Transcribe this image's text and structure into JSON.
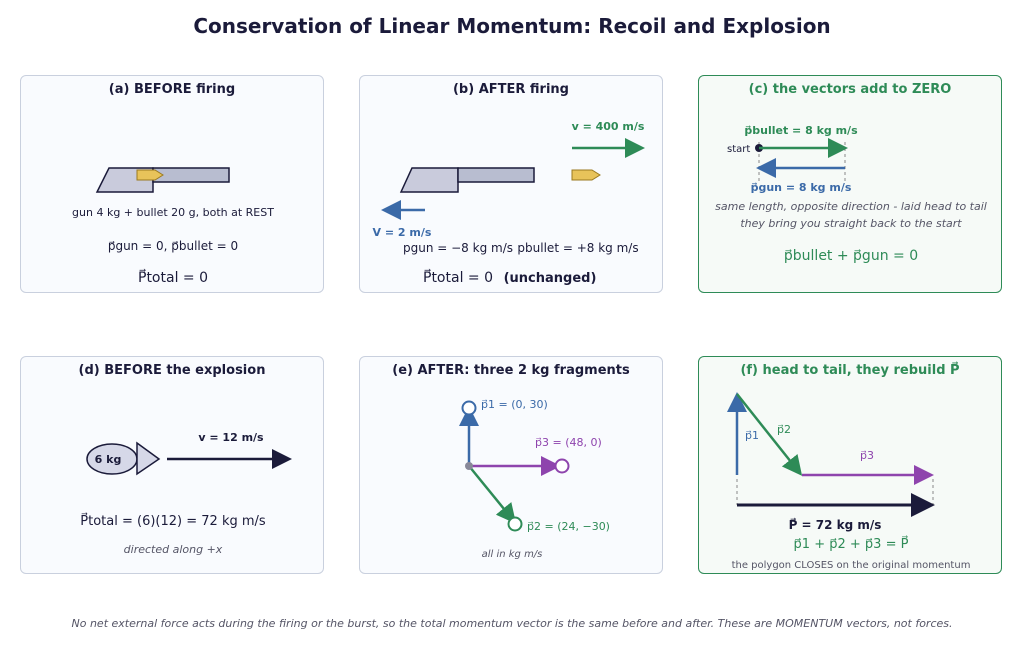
{
  "title": "Conservation of Linear Momentum: Recoil and Explosion",
  "colors": {
    "navy": "#1b1b3a",
    "blue": "#3b6aa8",
    "green": "#2e8b57",
    "purple": "#8e44ad",
    "gold": "#e8c35a",
    "gray_panel_border": "#c9d0de"
  },
  "panel_a": {
    "title": "(a)  BEFORE firing",
    "caption": "gun 4 kg  +  bullet 20 g,  both at REST",
    "momenta": "p⃗gun = 0,   p⃗bullet = 0",
    "total": "P⃗total = 0"
  },
  "panel_b": {
    "title": "(b)  AFTER firing",
    "bullet_velocity": "v = 400 m/s",
    "gun_velocity": "V = 2 m/s",
    "p_gun": "pgun = −8 kg m/s",
    "p_bullet": "pbullet = +8 kg m/s",
    "total": "P⃗total = 0",
    "unchanged": "(unchanged)"
  },
  "panel_c": {
    "title": "(c)  the vectors add to ZERO",
    "p_bullet_label": "p⃗bullet = 8 kg m/s",
    "start_label": "start",
    "p_gun_label": "p⃗gun = 8 kg m/s",
    "note1": "same length, opposite direction - laid head to tail",
    "note2": "they bring you straight back to the start",
    "equation": "p⃗bullet + p⃗gun = 0"
  },
  "panel_d": {
    "title": "(d)  BEFORE the explosion",
    "mass_label": "6 kg",
    "velocity": "v = 12 m/s",
    "total": "P⃗total = (6)(12) = 72 kg m/s",
    "note": "directed along +x"
  },
  "panel_e": {
    "title": "(e)  AFTER: three 2 kg fragments",
    "p1": "p⃗1 = (0, 30)",
    "p2": "p⃗2 = (24, −30)",
    "p3": "p⃗3 = (48, 0)",
    "note": "all in kg m/s"
  },
  "panel_f": {
    "title": "(f)  head to tail, they rebuild P⃗",
    "p1_label": "p⃗1",
    "p2_label": "p⃗2",
    "p3_label": "p⃗3",
    "P_label": "P⃗ = 72 kg m/s",
    "sum": "p⃗1 + p⃗2 + p⃗3 = P⃗",
    "note": "the polygon CLOSES on the original momentum"
  },
  "footer": "No net external force acts during the firing or the burst, so the total momentum vector is the same before and after. These are MOMENTUM vectors, not forces."
}
